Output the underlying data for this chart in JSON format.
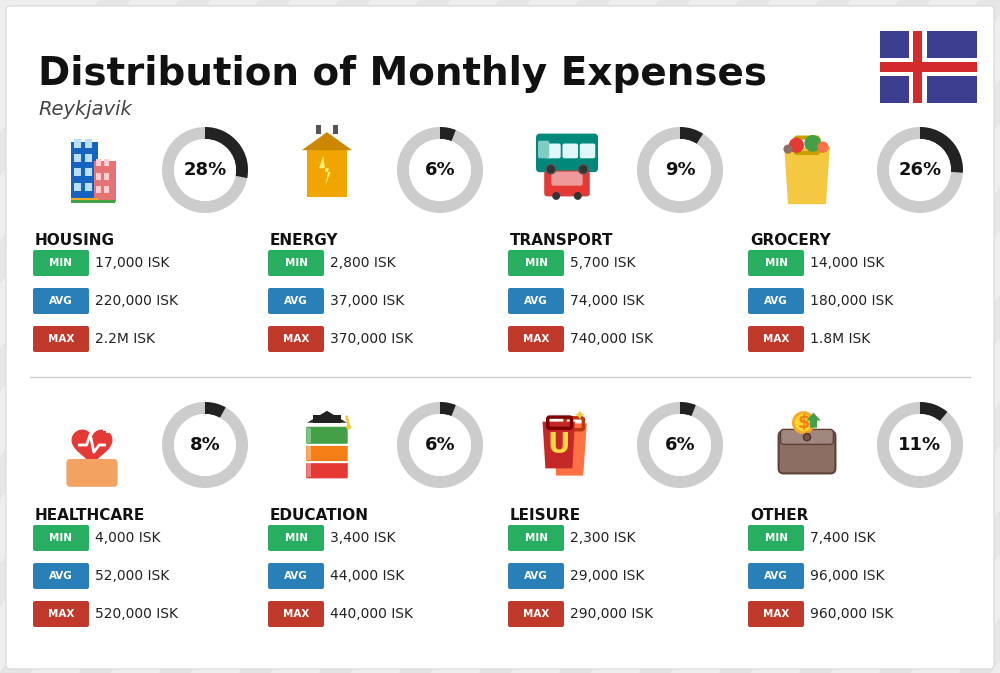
{
  "title": "Distribution of Monthly Expenses",
  "subtitle": "Reykjavik",
  "bg_color": "#eeeeee",
  "categories": [
    {
      "name": "HOUSING",
      "pct": 28,
      "min": "17,000 ISK",
      "avg": "220,000 ISK",
      "max": "2.2M ISK",
      "row": 0,
      "col": 0
    },
    {
      "name": "ENERGY",
      "pct": 6,
      "min": "2,800 ISK",
      "avg": "37,000 ISK",
      "max": "370,000 ISK",
      "row": 0,
      "col": 1
    },
    {
      "name": "TRANSPORT",
      "pct": 9,
      "min": "5,700 ISK",
      "avg": "74,000 ISK",
      "max": "740,000 ISK",
      "row": 0,
      "col": 2
    },
    {
      "name": "GROCERY",
      "pct": 26,
      "min": "14,000 ISK",
      "avg": "180,000 ISK",
      "max": "1.8M ISK",
      "row": 0,
      "col": 3
    },
    {
      "name": "HEALTHCARE",
      "pct": 8,
      "min": "4,000 ISK",
      "avg": "52,000 ISK",
      "max": "520,000 ISK",
      "row": 1,
      "col": 0
    },
    {
      "name": "EDUCATION",
      "pct": 6,
      "min": "3,400 ISK",
      "avg": "44,000 ISK",
      "max": "440,000 ISK",
      "row": 1,
      "col": 1
    },
    {
      "name": "LEISURE",
      "pct": 6,
      "min": "2,300 ISK",
      "avg": "29,000 ISK",
      "max": "290,000 ISK",
      "row": 1,
      "col": 2
    },
    {
      "name": "OTHER",
      "pct": 11,
      "min": "7,400 ISK",
      "avg": "96,000 ISK",
      "max": "960,000 ISK",
      "row": 1,
      "col": 3
    }
  ],
  "color_min": "#27ae60",
  "color_avg": "#2980b9",
  "color_max": "#c0392b",
  "color_ring_bg": "#cccccc",
  "color_ring_fg": "#222222",
  "flag_blue": "#3d3d8f",
  "flag_red": "#d32b2b",
  "stripe_color": "#e0e0e0",
  "card_color": "#f5f5f5"
}
